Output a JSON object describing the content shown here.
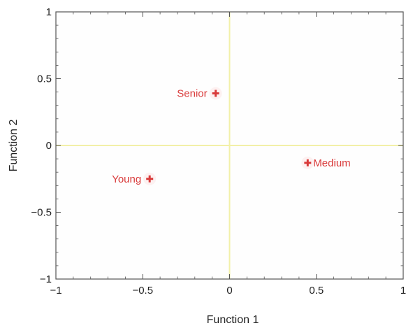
{
  "chart_data": {
    "type": "scatter",
    "title": "",
    "xlabel": "Function 1",
    "ylabel": "Function 2",
    "xlim": [
      -1,
      1
    ],
    "ylim": [
      -1,
      1
    ],
    "x_ticks": [
      -1,
      -0.5,
      0,
      0.5,
      1
    ],
    "y_ticks": [
      1,
      0.5,
      0,
      -0.5,
      -1
    ],
    "x_tick_labels": [
      "−1",
      "−0.5",
      "0",
      "0.5",
      "1"
    ],
    "y_tick_labels": [
      "1",
      "0.5",
      "0",
      "−0.5",
      "−1"
    ],
    "grid": false,
    "zero_lines": true,
    "points": [
      {
        "label": "Senior",
        "x": -0.08,
        "y": 0.39
      },
      {
        "label": "Young",
        "x": -0.46,
        "y": -0.25
      },
      {
        "label": "Medium",
        "x": 0.45,
        "y": -0.13
      }
    ],
    "point_color": "#d93a3a",
    "label_color": "#d93a3a",
    "zero_line_color": "#f2f0a8",
    "frame_color": "#555555"
  }
}
